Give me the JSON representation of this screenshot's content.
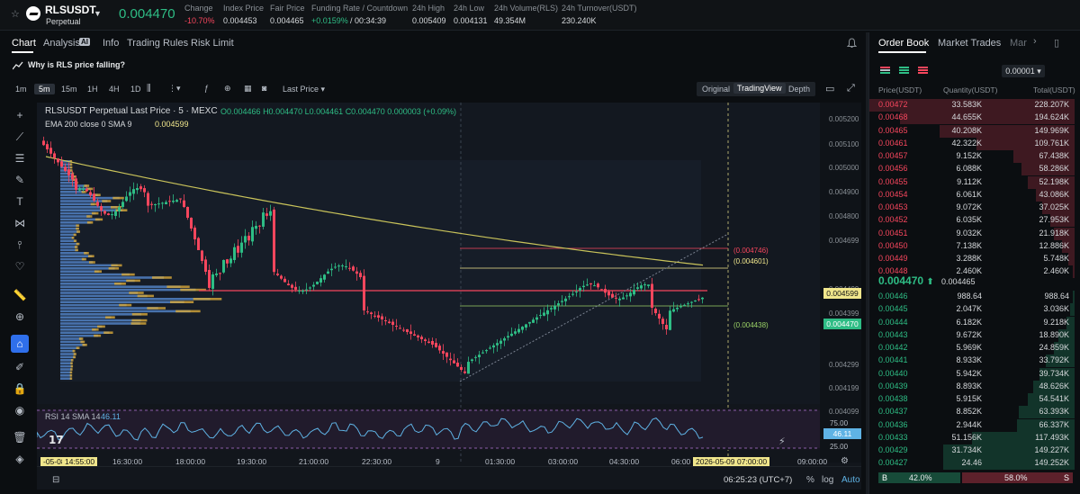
{
  "ticker": {
    "symbol": "RLSUSDT",
    "type": "Perpetual",
    "last_price": "0.004470",
    "stats": [
      {
        "label": "Change",
        "value": "-10.70%",
        "color": "#f6465d"
      },
      {
        "label": "Index Price",
        "value": "0.004453",
        "color": "#d6d9dc"
      },
      {
        "label": "Fair Price",
        "value": "0.004465",
        "color": "#d6d9dc"
      },
      {
        "label": "Funding Rate / Countdown",
        "value": "+0.0159%",
        "value2": "/ 00:34:39",
        "color": "#2ebd85"
      },
      {
        "label": "24h High",
        "value": "0.005409",
        "color": "#d6d9dc"
      },
      {
        "label": "24h Low",
        "value": "0.004131",
        "color": "#d6d9dc"
      },
      {
        "label": "24h Volume(RLS)",
        "value": "49.354M",
        "color": "#d6d9dc"
      },
      {
        "label": "24h Turnover(USDT)",
        "value": "230.240K",
        "color": "#d6d9dc"
      }
    ]
  },
  "tabs": [
    "Chart",
    "Analysis",
    "Info",
    "Trading Rules",
    "Risk Limit"
  ],
  "analysis_badge": "AI",
  "banner": "Why is RLS price falling?",
  "timeframes": [
    "1m",
    "5m",
    "15m",
    "1H",
    "4H",
    "1D"
  ],
  "price_type": "Last Price",
  "views": [
    "Original",
    "TradingView",
    "Depth"
  ],
  "chart": {
    "legend_title": "RLSUSDT Perpetual Last Price · 5 · MEXC",
    "ohlc": {
      "o": "O0.004466",
      "h": "H0.004470",
      "l": "L0.004461",
      "c": "C0.004470",
      "chg": "0.000003 (+0.09%)"
    },
    "ema_label": "EMA 200 close 0 SMA 9",
    "ema_value": "0.004599",
    "y_ticks": [
      "0.005200",
      "0.005100",
      "0.005000",
      "0.004900",
      "0.004800",
      "0.004699",
      "0.004599",
      "0.004499",
      "0.004399",
      "0.004299",
      "0.004199",
      "0.004099"
    ],
    "line_labels": [
      {
        "text": "(0.004746)",
        "color": "#f6465d"
      },
      {
        "text": "(0.004601)",
        "color": "#f0e68c"
      },
      {
        "text": "(0.004438)",
        "color": "#9bd266"
      }
    ],
    "price_tag_ema": "0.004599",
    "price_tag_last": "0.004470",
    "rsi_label": "RSI 14 SMA 14",
    "rsi_value": "46.11",
    "rsi_levels": [
      "75.00",
      "25.00"
    ],
    "x_ticks": [
      "-05-08",
      "14:55:00",
      "16:30:00",
      "18:00:00",
      "19:30:00",
      "21:00:00",
      "22:30:00",
      "9",
      "01:30:00",
      "03:00:00",
      "04:30:00",
      "06:00",
      "2026-05-09",
      "07:00:00",
      "09:00:00"
    ],
    "clock": "06:25:23 (UTC+7)",
    "scale_opts": [
      "%",
      "log",
      "Auto"
    ]
  },
  "orderbook": {
    "tabs": [
      "Order Book",
      "Market Trades",
      "Mar"
    ],
    "precision": "0.00001",
    "headers": [
      "Price(USDT)",
      "Quantity(USDT)",
      "Total(USDT)"
    ],
    "asks": [
      {
        "p": "0.00472",
        "q": "33.583K",
        "t": "228.207K",
        "d": 1.0
      },
      {
        "p": "0.00468",
        "q": "44.655K",
        "t": "194.624K",
        "d": 0.85
      },
      {
        "p": "0.00465",
        "q": "40.208K",
        "t": "149.969K",
        "d": 0.66
      },
      {
        "p": "0.00461",
        "q": "42.322K",
        "t": "109.761K",
        "d": 0.48
      },
      {
        "p": "0.00457",
        "q": "9.152K",
        "t": "67.438K",
        "d": 0.3
      },
      {
        "p": "0.00456",
        "q": "6.088K",
        "t": "58.286K",
        "d": 0.26
      },
      {
        "p": "0.00455",
        "q": "9.112K",
        "t": "52.198K",
        "d": 0.23
      },
      {
        "p": "0.00454",
        "q": "6.061K",
        "t": "43.086K",
        "d": 0.19
      },
      {
        "p": "0.00453",
        "q": "9.072K",
        "t": "37.025K",
        "d": 0.16
      },
      {
        "p": "0.00452",
        "q": "6.035K",
        "t": "27.953K",
        "d": 0.12
      },
      {
        "p": "0.00451",
        "q": "9.032K",
        "t": "21.918K",
        "d": 0.1
      },
      {
        "p": "0.00450",
        "q": "7.138K",
        "t": "12.886K",
        "d": 0.06
      },
      {
        "p": "0.00449",
        "q": "3.288K",
        "t": "5.748K",
        "d": 0.03
      },
      {
        "p": "0.00448",
        "q": "2.460K",
        "t": "2.460K",
        "d": 0.01
      }
    ],
    "mid_price": "0.004470",
    "mid_index": "0.004465",
    "bids": [
      {
        "p": "0.00446",
        "q": "988.64",
        "t": "988.64",
        "d": 0.01
      },
      {
        "p": "0.00445",
        "q": "2.047K",
        "t": "3.036K",
        "d": 0.02
      },
      {
        "p": "0.00444",
        "q": "6.182K",
        "t": "9.218K",
        "d": 0.04
      },
      {
        "p": "0.00443",
        "q": "9.672K",
        "t": "18.890K",
        "d": 0.08
      },
      {
        "p": "0.00442",
        "q": "5.969K",
        "t": "24.859K",
        "d": 0.1
      },
      {
        "p": "0.00441",
        "q": "8.933K",
        "t": "33.792K",
        "d": 0.14
      },
      {
        "p": "0.00440",
        "q": "5.942K",
        "t": "39.734K",
        "d": 0.17
      },
      {
        "p": "0.00439",
        "q": "8.893K",
        "t": "48.626K",
        "d": 0.2
      },
      {
        "p": "0.00438",
        "q": "5.915K",
        "t": "54.541K",
        "d": 0.23
      },
      {
        "p": "0.00437",
        "q": "8.852K",
        "t": "63.393K",
        "d": 0.27
      },
      {
        "p": "0.00436",
        "q": "2.944K",
        "t": "66.337K",
        "d": 0.28
      },
      {
        "p": "0.00433",
        "q": "51.156K",
        "t": "117.493K",
        "d": 0.5
      },
      {
        "p": "0.00429",
        "q": "31.734K",
        "t": "149.227K",
        "d": 0.64
      },
      {
        "p": "0.00427",
        "q": "24.46",
        "t": "149.252K",
        "d": 0.64
      }
    ],
    "ratio": {
      "b_label": "B",
      "b": "42.0%",
      "s": "58.0%",
      "s_label": "S",
      "b_frac": 0.42
    }
  }
}
